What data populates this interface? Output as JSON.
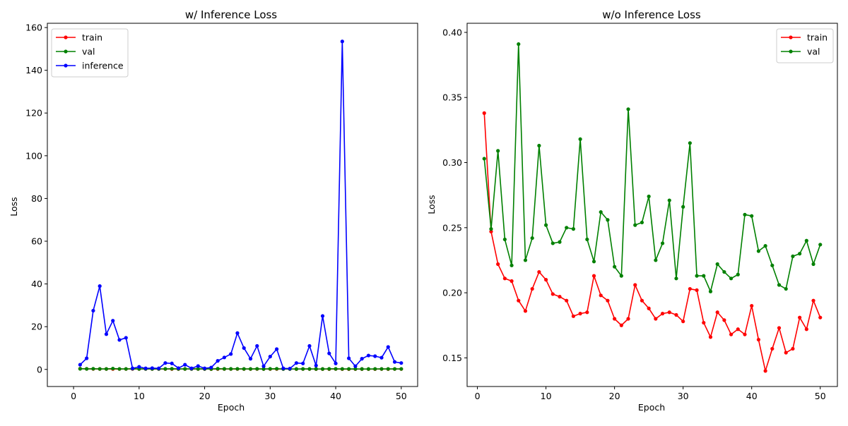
{
  "chart_data": [
    {
      "type": "line",
      "title": "w/ Inference Loss",
      "xlabel": "Epoch",
      "ylabel": "Loss",
      "xlim": [
        -4,
        52.5
      ],
      "ylim": [
        -8,
        162
      ],
      "xticks": [
        0,
        10,
        20,
        30,
        40,
        50
      ],
      "xtick_labels": [
        "0",
        "10",
        "20",
        "30",
        "40",
        "50"
      ],
      "yticks": [
        0,
        20,
        40,
        60,
        80,
        100,
        120,
        140,
        160
      ],
      "ytick_labels": [
        "0",
        "20",
        "40",
        "60",
        "80",
        "100",
        "120",
        "140",
        "160"
      ],
      "grid": false,
      "legend_position": "top-left",
      "x": [
        1,
        2,
        3,
        4,
        5,
        6,
        7,
        8,
        9,
        10,
        11,
        12,
        13,
        14,
        15,
        16,
        17,
        18,
        19,
        20,
        21,
        22,
        23,
        24,
        25,
        26,
        27,
        28,
        29,
        30,
        31,
        32,
        33,
        34,
        35,
        36,
        37,
        38,
        39,
        40,
        41,
        42,
        43,
        44,
        45,
        46,
        47,
        48,
        49,
        50
      ],
      "series": [
        {
          "name": "train",
          "color": "#ff0000",
          "values": [
            0.34,
            0.25,
            0.22,
            0.21,
            0.21,
            0.19,
            0.19,
            0.2,
            0.22,
            0.21,
            0.2,
            0.2,
            0.19,
            0.18,
            0.18,
            0.18,
            0.21,
            0.2,
            0.19,
            0.18,
            0.17,
            0.18,
            0.21,
            0.19,
            0.19,
            0.18,
            0.18,
            0.19,
            0.18,
            0.18,
            0.2,
            0.2,
            0.18,
            0.17,
            0.19,
            0.18,
            0.17,
            0.17,
            0.17,
            0.19,
            0.16,
            0.14,
            0.16,
            0.17,
            0.15,
            0.16,
            0.18,
            0.17,
            0.19,
            0.18
          ]
        },
        {
          "name": "val",
          "color": "#008000",
          "values": [
            0.3,
            0.25,
            0.31,
            0.24,
            0.22,
            0.39,
            0.23,
            0.24,
            0.31,
            0.25,
            0.24,
            0.24,
            0.25,
            0.25,
            0.32,
            0.24,
            0.22,
            0.26,
            0.26,
            0.22,
            0.21,
            0.34,
            0.25,
            0.25,
            0.27,
            0.23,
            0.24,
            0.27,
            0.21,
            0.27,
            0.32,
            0.21,
            0.21,
            0.2,
            0.22,
            0.22,
            0.21,
            0.21,
            0.26,
            0.26,
            0.23,
            0.24,
            0.22,
            0.21,
            0.2,
            0.23,
            0.23,
            0.24,
            0.22,
            0.24
          ]
        },
        {
          "name": "inference",
          "color": "#0000ff",
          "values": [
            2.2,
            5.2,
            27.5,
            39.0,
            16.5,
            22.8,
            13.8,
            14.8,
            0.5,
            1.2,
            0.5,
            0.6,
            0.5,
            3.0,
            2.8,
            0.6,
            2.2,
            0.5,
            1.6,
            0.5,
            0.9,
            4.0,
            5.6,
            7.2,
            17.0,
            10.0,
            5.0,
            11.0,
            1.5,
            6.0,
            9.5,
            0.5,
            0.4,
            3.0,
            2.8,
            11.0,
            1.8,
            25.0,
            7.5,
            2.8,
            153.5,
            5.2,
            1.5,
            5.0,
            6.5,
            6.2,
            5.5,
            10.5,
            3.5,
            3.0
          ]
        }
      ]
    },
    {
      "type": "line",
      "title": "w/o Inference Loss",
      "xlabel": "Epoch",
      "ylabel": "Loss",
      "xlim": [
        -1.5,
        52.5
      ],
      "ylim": [
        0.128,
        0.407
      ],
      "xticks": [
        0,
        10,
        20,
        30,
        40,
        50
      ],
      "xtick_labels": [
        "0",
        "10",
        "20",
        "30",
        "40",
        "50"
      ],
      "yticks": [
        0.15,
        0.2,
        0.25,
        0.3,
        0.35,
        0.4
      ],
      "ytick_labels": [
        "0.15",
        "0.20",
        "0.25",
        "0.30",
        "0.35",
        "0.40"
      ],
      "grid": false,
      "legend_position": "top-right",
      "x": [
        1,
        2,
        3,
        4,
        5,
        6,
        7,
        8,
        9,
        10,
        11,
        12,
        13,
        14,
        15,
        16,
        17,
        18,
        19,
        20,
        21,
        22,
        23,
        24,
        25,
        26,
        27,
        28,
        29,
        30,
        31,
        32,
        33,
        34,
        35,
        36,
        37,
        38,
        39,
        40,
        41,
        42,
        43,
        44,
        45,
        46,
        47,
        48,
        49,
        50
      ],
      "series": [
        {
          "name": "train",
          "color": "#ff0000",
          "values": [
            0.338,
            0.247,
            0.222,
            0.211,
            0.209,
            0.194,
            0.186,
            0.203,
            0.216,
            0.21,
            0.199,
            0.197,
            0.194,
            0.182,
            0.184,
            0.185,
            0.213,
            0.198,
            0.194,
            0.18,
            0.175,
            0.18,
            0.206,
            0.194,
            0.188,
            0.18,
            0.184,
            0.185,
            0.183,
            0.178,
            0.203,
            0.202,
            0.177,
            0.166,
            0.185,
            0.179,
            0.168,
            0.172,
            0.168,
            0.19,
            0.164,
            0.14,
            0.157,
            0.173,
            0.154,
            0.157,
            0.181,
            0.172,
            0.194,
            0.181
          ]
        },
        {
          "name": "val",
          "color": "#008000",
          "values": [
            0.303,
            0.249,
            0.309,
            0.241,
            0.221,
            0.391,
            0.225,
            0.242,
            0.313,
            0.252,
            0.238,
            0.239,
            0.25,
            0.249,
            0.318,
            0.241,
            0.224,
            0.262,
            0.256,
            0.22,
            0.213,
            0.341,
            0.252,
            0.254,
            0.274,
            0.225,
            0.238,
            0.271,
            0.211,
            0.266,
            0.315,
            0.213,
            0.213,
            0.201,
            0.222,
            0.216,
            0.211,
            0.214,
            0.26,
            0.259,
            0.232,
            0.236,
            0.221,
            0.206,
            0.203,
            0.228,
            0.23,
            0.24,
            0.222,
            0.237
          ]
        }
      ]
    }
  ]
}
